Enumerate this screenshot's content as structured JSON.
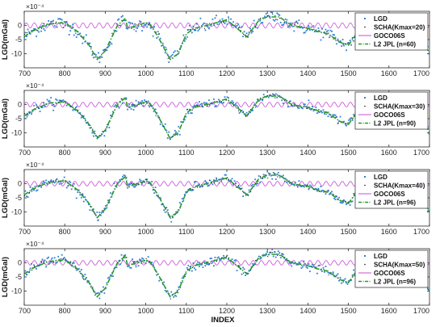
{
  "chart_data": [
    {
      "type": "line",
      "ylabel": "LGD(mGal)",
      "xlabel": "",
      "exponent_label": "×10⁻⁴",
      "xlim": [
        700,
        1700
      ],
      "ylim": [
        -15,
        5
      ],
      "x_ticks": [
        700,
        800,
        900,
        1000,
        1100,
        1200,
        1300,
        1400,
        1500,
        1600,
        1700
      ],
      "y_ticks": [
        0,
        -5,
        -10
      ],
      "legend_position": "right",
      "series": [
        {
          "name": "LGD",
          "style": "markers",
          "color": "#2e7fd6",
          "scatter_sd": 1.2
        },
        {
          "name": "SCHA(Kmax=20)",
          "style": "dots",
          "color": "#111111",
          "scatter_sd": 0.5
        },
        {
          "name": "GOCO06S",
          "style": "line",
          "color": "#c94fd8",
          "amplitude": 0.9,
          "period": 20
        },
        {
          "name": "L2 JPL (n=60)",
          "style": "dashdot",
          "color": "#2a9b2a"
        }
      ],
      "trend": {
        "x": [
          700,
          720,
          760,
          800,
          830,
          860,
          880,
          900,
          930,
          950,
          955,
          980,
          1000,
          1010,
          1030,
          1060,
          1080,
          1100,
          1120,
          1150,
          1200,
          1250,
          1280,
          1300,
          1330,
          1360,
          1400,
          1420,
          1450,
          1480,
          1500,
          1520,
          1540,
          1560,
          1600,
          1640,
          1680,
          1700
        ],
        "y": [
          -4,
          -2,
          0.5,
          1,
          -2,
          -7,
          -12,
          -9,
          0,
          2.5,
          -1,
          0,
          1,
          0.5,
          -4,
          -12,
          -10,
          -3,
          -1,
          0,
          2,
          -4,
          2,
          3,
          3,
          0,
          -1,
          -2,
          -3,
          -6,
          -7,
          -3,
          -1,
          -1,
          -2,
          -2,
          -4,
          -10
        ]
      }
    },
    {
      "type": "line",
      "ylabel": "LGD(mGal)",
      "xlabel": "",
      "exponent_label": "×10⁻⁴",
      "xlim": [
        700,
        1700
      ],
      "ylim": [
        -15,
        5
      ],
      "x_ticks": [
        700,
        800,
        900,
        1000,
        1100,
        1200,
        1300,
        1400,
        1500,
        1600,
        1700
      ],
      "y_ticks": [
        0,
        -5,
        -10
      ],
      "legend_position": "right",
      "series": [
        {
          "name": "LGD",
          "style": "markers",
          "color": "#2e7fd6",
          "scatter_sd": 0.8
        },
        {
          "name": "SCHA(Kmax=30)",
          "style": "dots",
          "color": "#111111",
          "scatter_sd": 0.4
        },
        {
          "name": "GOCO06S",
          "style": "line",
          "color": "#c94fd8",
          "amplitude": 0.8,
          "period": 20
        },
        {
          "name": "L2 JPL (n=90)",
          "style": "dashdot",
          "color": "#2a9b2a"
        }
      ],
      "trend": {
        "x": [
          700,
          720,
          760,
          800,
          830,
          860,
          880,
          900,
          930,
          950,
          955,
          980,
          1000,
          1010,
          1030,
          1060,
          1080,
          1100,
          1120,
          1150,
          1200,
          1250,
          1280,
          1300,
          1330,
          1360,
          1400,
          1420,
          1450,
          1480,
          1500,
          1520,
          1540,
          1560,
          1600,
          1640,
          1680,
          1700
        ],
        "y": [
          -4,
          -2,
          0.5,
          1,
          -2,
          -7,
          -12,
          -9,
          0,
          2.5,
          -1,
          0,
          1,
          0.5,
          -4,
          -12,
          -10,
          -3,
          -1,
          0,
          2,
          -4,
          2,
          3,
          3,
          0,
          -1,
          -2,
          -3,
          -6,
          -7,
          -3,
          -1,
          -1,
          -2,
          -2,
          -4,
          -10
        ]
      }
    },
    {
      "type": "line",
      "ylabel": "LGD(mGal)",
      "xlabel": "",
      "exponent_label": "×10⁻⁴",
      "xlim": [
        700,
        1700
      ],
      "ylim": [
        -15,
        5
      ],
      "x_ticks": [
        700,
        800,
        900,
        1000,
        1100,
        1200,
        1300,
        1400,
        1500,
        1600,
        1700
      ],
      "y_ticks": [
        0,
        -5,
        -10
      ],
      "legend_position": "right",
      "series": [
        {
          "name": "LGD",
          "style": "markers",
          "color": "#2e7fd6",
          "scatter_sd": 0.8
        },
        {
          "name": "SCHA(Kmax=40)",
          "style": "dots",
          "color": "#111111",
          "scatter_sd": 0.4
        },
        {
          "name": "GOCO06S",
          "style": "line",
          "color": "#c94fd8",
          "amplitude": 0.8,
          "period": 20
        },
        {
          "name": "L2 JPL (n=96)",
          "style": "dashdot",
          "color": "#2a9b2a"
        }
      ],
      "trend": {
        "x": [
          700,
          720,
          760,
          800,
          830,
          860,
          880,
          900,
          930,
          950,
          955,
          980,
          1000,
          1010,
          1030,
          1060,
          1080,
          1100,
          1120,
          1150,
          1200,
          1250,
          1280,
          1300,
          1330,
          1360,
          1400,
          1420,
          1450,
          1480,
          1500,
          1520,
          1540,
          1560,
          1600,
          1640,
          1680,
          1700
        ],
        "y": [
          -4,
          -2,
          0.5,
          1,
          -2,
          -7,
          -12,
          -9,
          0,
          2.5,
          -1,
          0,
          1,
          0.5,
          -4,
          -12,
          -10,
          -3,
          -1,
          0,
          2,
          -4,
          2,
          3,
          3,
          0,
          -1,
          -2,
          -3,
          -6,
          -7,
          -3,
          -1,
          -1,
          -2,
          -2,
          -4,
          -10
        ]
      }
    },
    {
      "type": "line",
      "ylabel": "LGD(mGal)",
      "xlabel": "INDEX",
      "exponent_label": "×10⁻⁴",
      "xlim": [
        700,
        1700
      ],
      "ylim": [
        -15,
        5
      ],
      "x_ticks": [
        700,
        800,
        900,
        1000,
        1100,
        1200,
        1300,
        1400,
        1500,
        1600,
        1700
      ],
      "y_ticks": [
        0,
        -5,
        -10
      ],
      "legend_position": "right",
      "series": [
        {
          "name": "LGD",
          "style": "markers",
          "color": "#2e7fd6",
          "scatter_sd": 0.8
        },
        {
          "name": "SCHA(Kmax=50)",
          "style": "dots",
          "color": "#111111",
          "scatter_sd": 0.4
        },
        {
          "name": "GOCO06S",
          "style": "line",
          "color": "#c94fd8",
          "amplitude": 0.8,
          "period": 20
        },
        {
          "name": "L2 JPL (n=96)",
          "style": "dashdot",
          "color": "#2a9b2a"
        }
      ],
      "trend": {
        "x": [
          700,
          720,
          760,
          800,
          830,
          860,
          880,
          900,
          930,
          950,
          955,
          980,
          1000,
          1010,
          1030,
          1060,
          1080,
          1100,
          1120,
          1150,
          1200,
          1250,
          1280,
          1300,
          1330,
          1360,
          1400,
          1420,
          1450,
          1480,
          1500,
          1520,
          1540,
          1560,
          1600,
          1640,
          1680,
          1700
        ],
        "y": [
          -4,
          -2,
          0.5,
          1,
          -2,
          -7,
          -12,
          -9,
          0,
          2.5,
          -1,
          0,
          1,
          0.5,
          -4,
          -12,
          -10,
          -3,
          -1,
          0,
          2,
          -4,
          2,
          3,
          3,
          0,
          -1,
          -2,
          -3,
          -6,
          -7,
          -3,
          -1,
          -1,
          -2,
          -2,
          -4,
          -10
        ]
      }
    }
  ]
}
